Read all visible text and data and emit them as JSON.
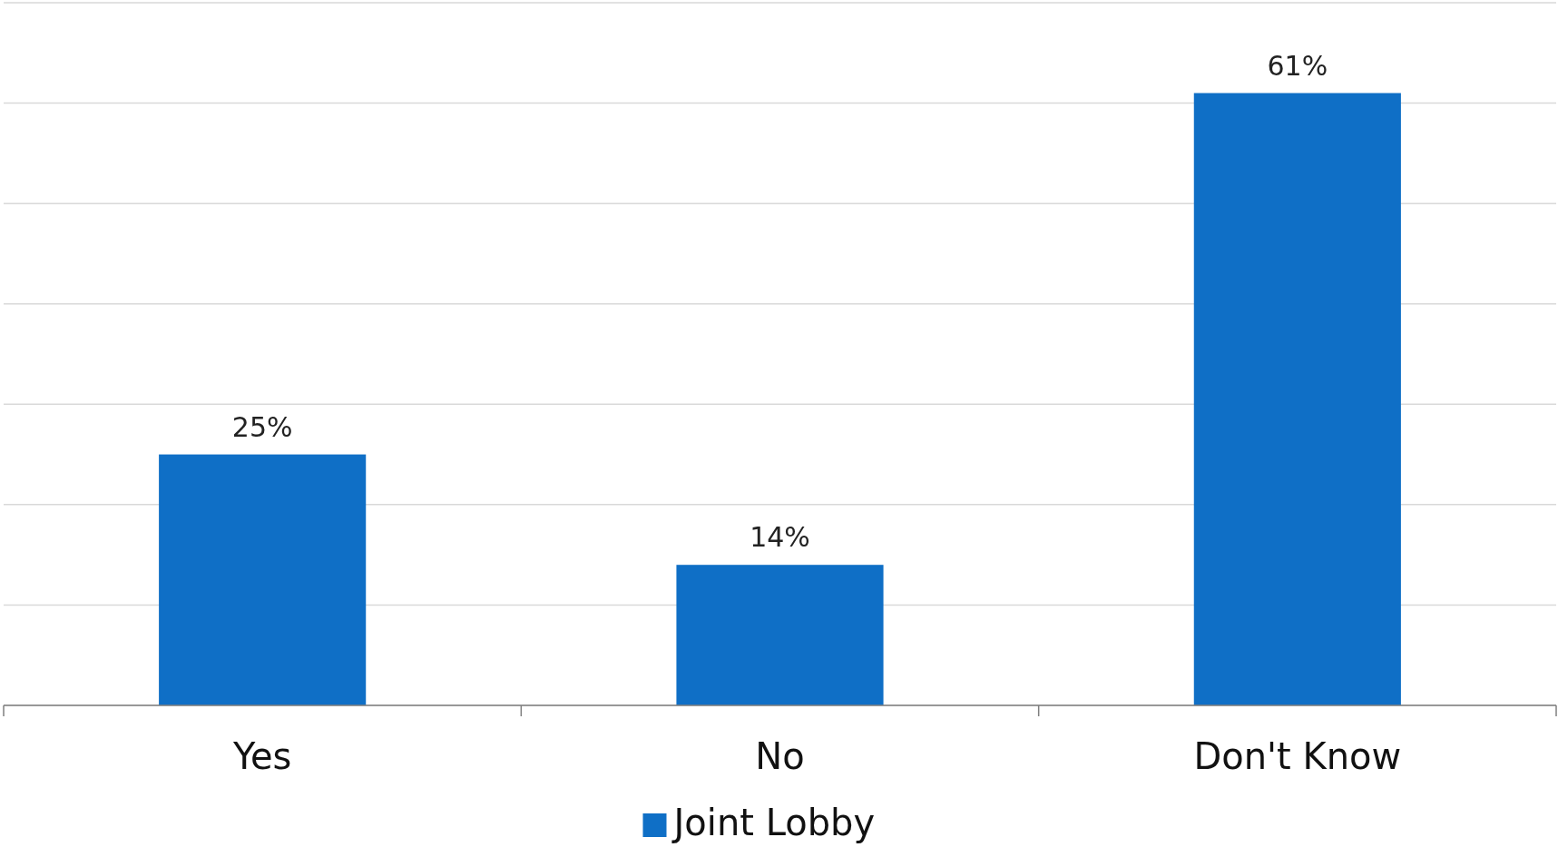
{
  "chart_data": {
    "type": "bar",
    "categories": [
      "Yes",
      "No",
      "Don't Know"
    ],
    "series": [
      {
        "name": "Joint Lobby",
        "color": "#0f6fc6",
        "values": [
          25,
          14,
          61
        ],
        "value_labels": [
          "25%",
          "14%",
          "61%"
        ]
      }
    ],
    "ylim": [
      0,
      70
    ],
    "yticks": [
      {
        "value": 0,
        "label": null
      },
      {
        "value": 10,
        "label": null
      },
      {
        "value": 20,
        "label": null
      },
      {
        "value": 30,
        "label": null
      },
      {
        "value": 40,
        "label": null
      },
      {
        "value": 50,
        "label": null
      },
      {
        "value": 60,
        "label": null
      },
      {
        "value": 70,
        "label": null
      }
    ],
    "grid": "y",
    "tick_labels": "x",
    "legend": "bottom"
  }
}
